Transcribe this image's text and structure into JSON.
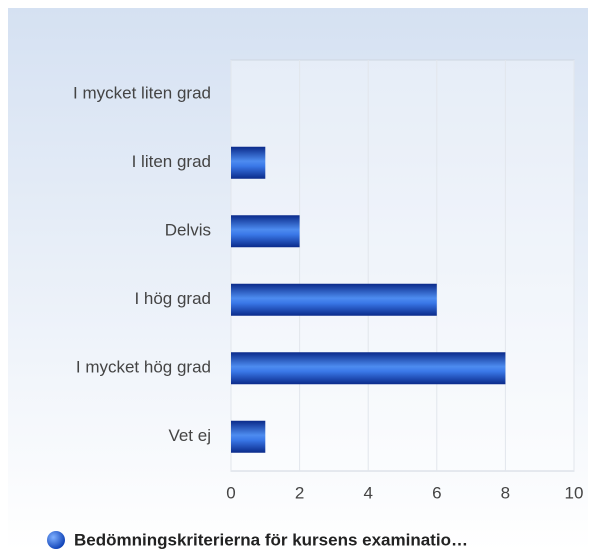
{
  "chart_data": {
    "type": "bar",
    "orientation": "horizontal",
    "categories": [
      "I mycket liten grad",
      "I liten grad",
      "Delvis",
      "I hög grad",
      "I mycket hög grad",
      "Vet ej"
    ],
    "series": [
      {
        "name": "Bedömningskriterierna för kursens examinatio…",
        "color": "#2a5fd6",
        "values": [
          0,
          1,
          2,
          6,
          8,
          1
        ]
      }
    ],
    "xlim": [
      0,
      10
    ],
    "xticks": [
      0,
      2,
      4,
      6,
      8,
      10
    ],
    "grid": true,
    "legend": "bottom"
  }
}
